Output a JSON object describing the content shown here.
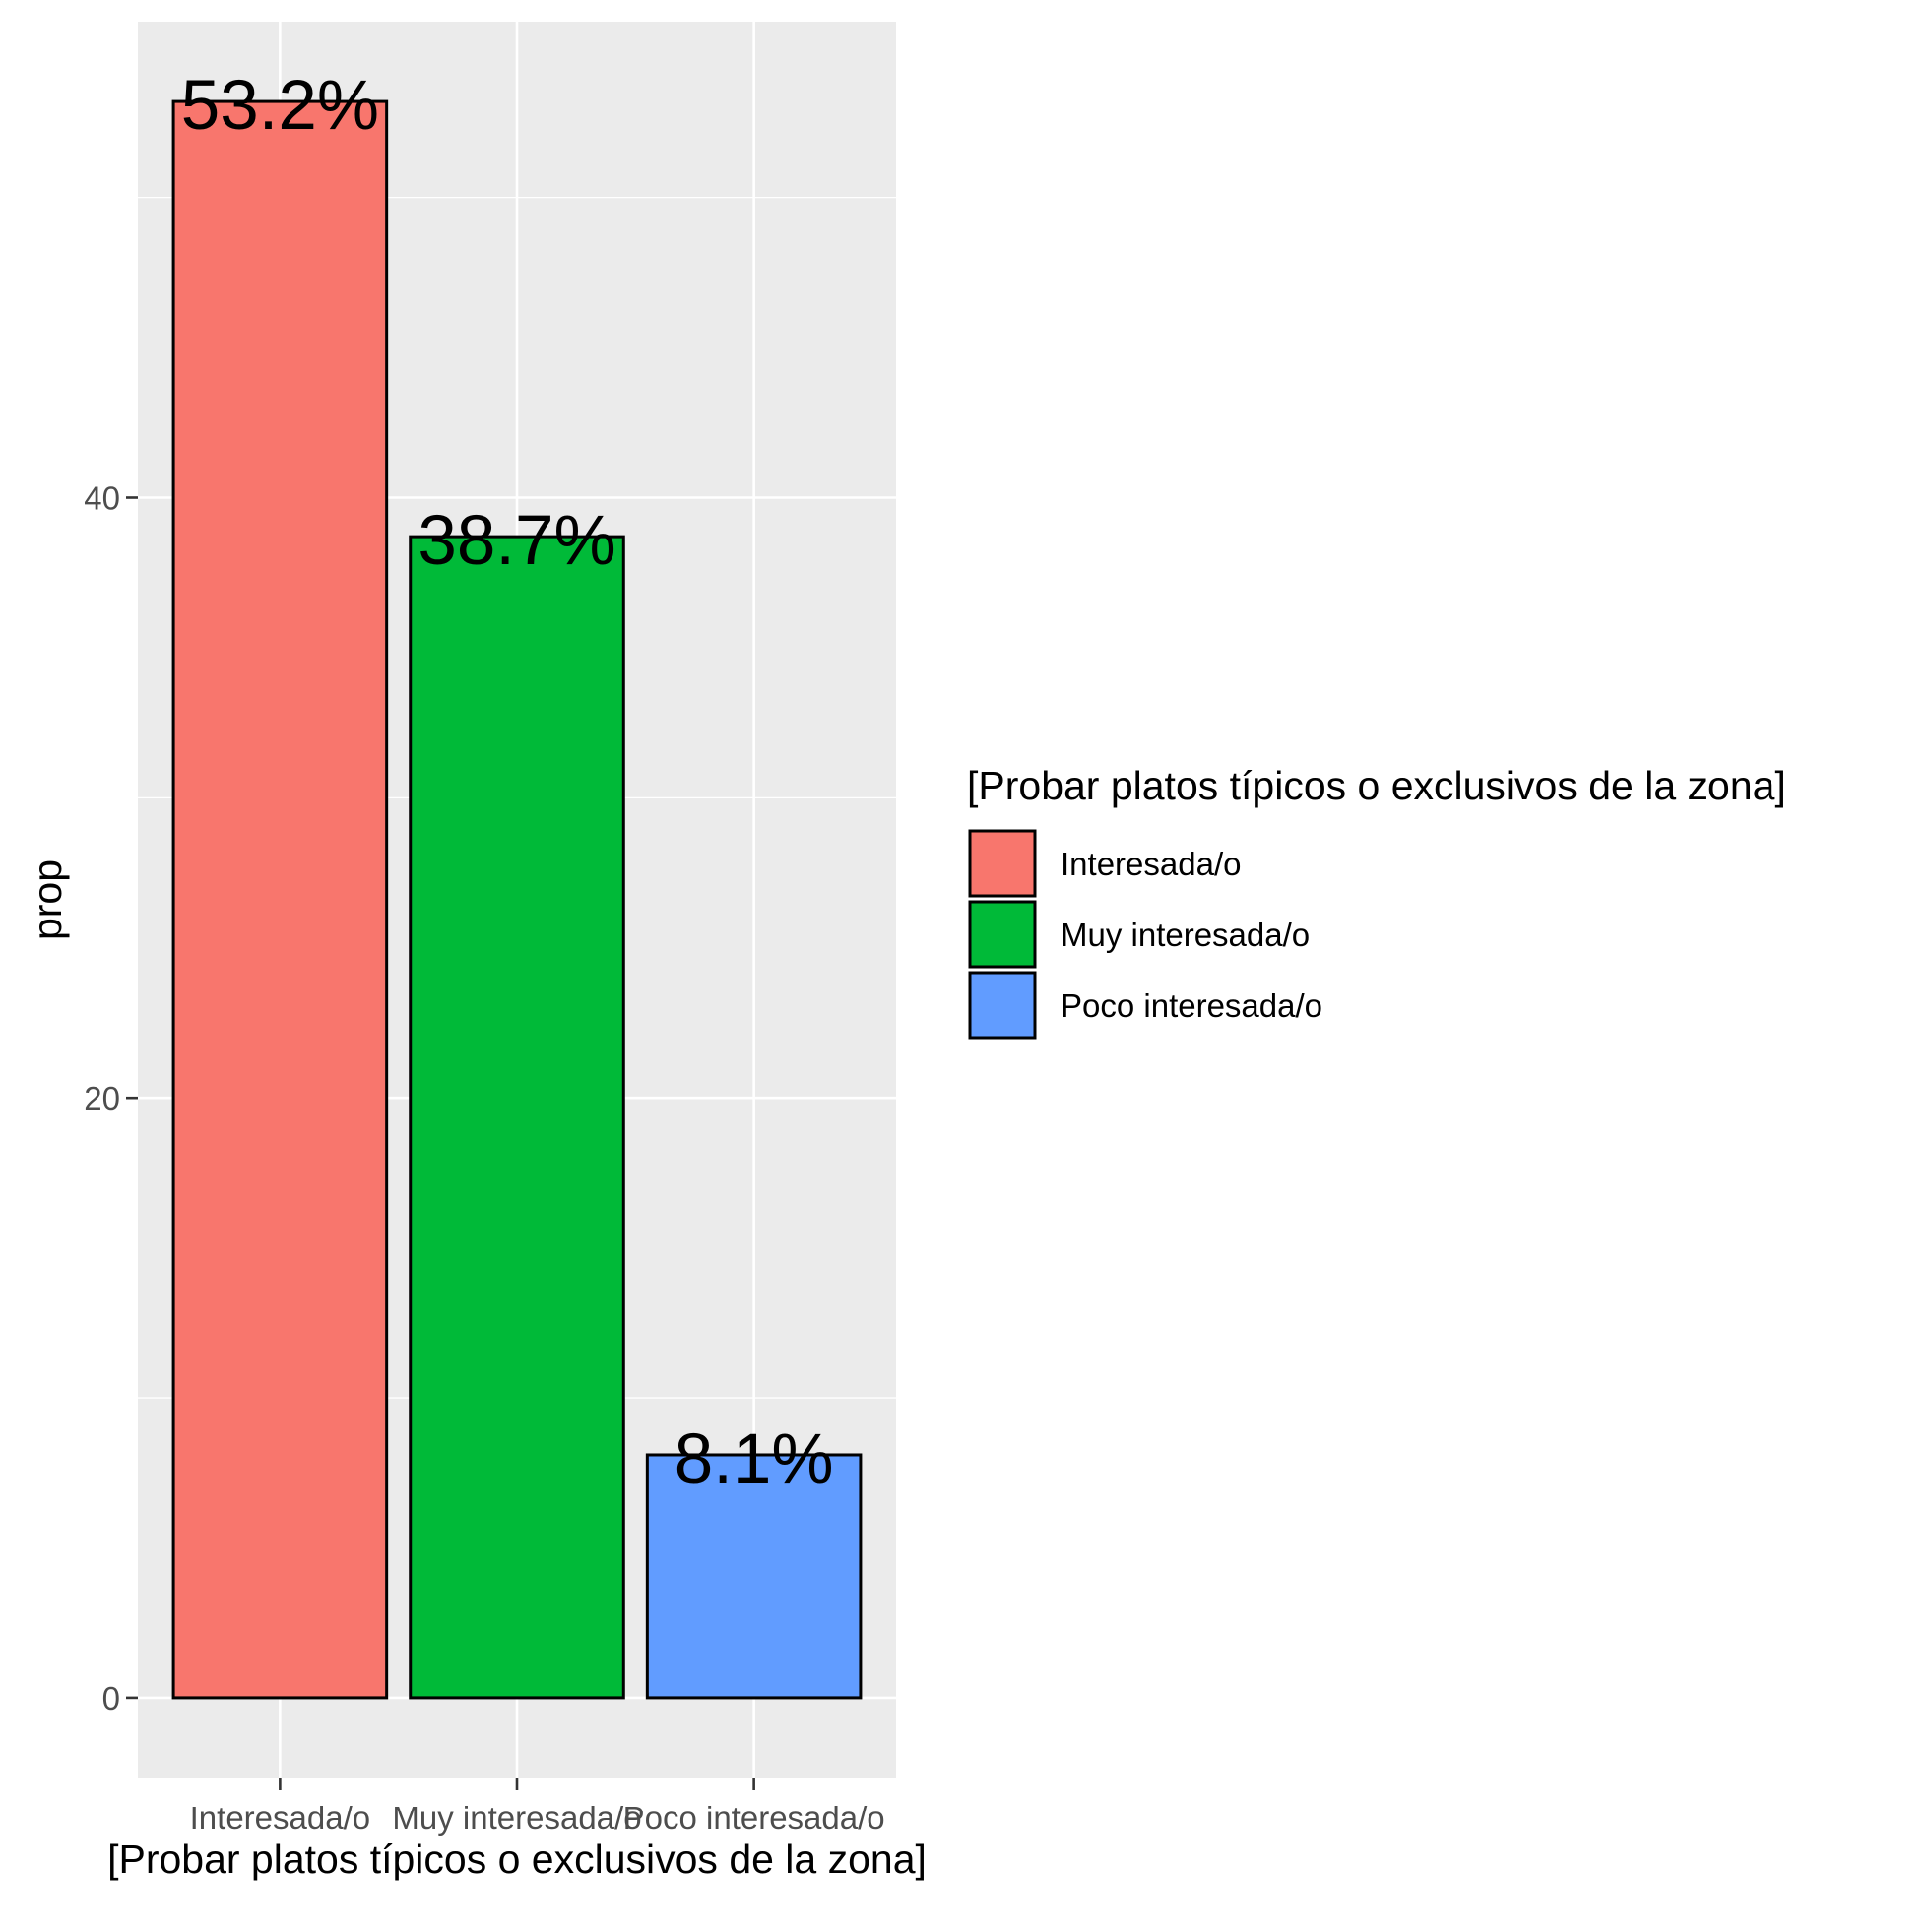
{
  "chart_data": {
    "type": "bar",
    "title": "",
    "xlabel": "[Probar platos típicos o exclusivos de la zona]",
    "ylabel": "prop",
    "categories": [
      "Interesada/o",
      "Muy interesada/o",
      "Poco interesada/o"
    ],
    "values": [
      53.2,
      38.7,
      8.1
    ],
    "data_labels": [
      "53.2%",
      "38.7%",
      "8.1%"
    ],
    "colors": [
      "#F8766D",
      "#00BA38",
      "#619CFF"
    ],
    "yticks": [
      0,
      20,
      40
    ],
    "ytick_labels": [
      "0",
      "20",
      "40"
    ],
    "ylim": [
      -2.66,
      55.86
    ],
    "grid": true,
    "panel_background": "#EBEBEB",
    "legend": {
      "title": "[Probar platos típicos o exclusivos de la zona]",
      "position": "right",
      "items": [
        "Interesada/o",
        "Muy interesada/o",
        "Poco interesada/o"
      ]
    }
  }
}
